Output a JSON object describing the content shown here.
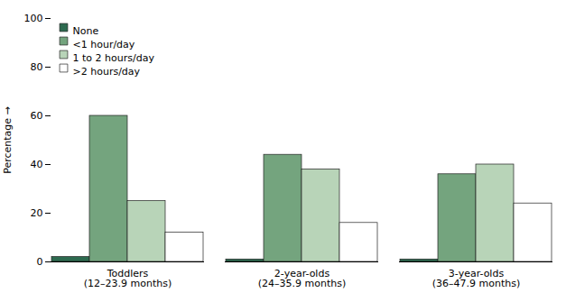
{
  "chart_data": {
    "type": "bar",
    "categories": [
      "Toddlers\n(12–23.9 months)",
      "2-year-olds\n(24–35.9 months)",
      "3-year-olds\n(36–47.9 months)"
    ],
    "series": [
      {
        "name": "None",
        "color": "#2d6a4f",
        "values": [
          2,
          1,
          1
        ]
      },
      {
        "name": "<1 hour/day",
        "color": "#74a47e",
        "values": [
          60,
          44,
          36
        ]
      },
      {
        "name": "1 to 2 hours/day",
        "color": "#b8d4b8",
        "values": [
          25,
          38,
          40
        ]
      },
      {
        "name": ">2 hours/day",
        "color": "#ffffff",
        "values": [
          12,
          16,
          24
        ]
      }
    ],
    "ylabel": "Percentage",
    "ylim": [
      0,
      100
    ],
    "yticks": [
      0,
      20,
      40,
      60,
      80,
      100
    ],
    "legend": "upper left"
  }
}
